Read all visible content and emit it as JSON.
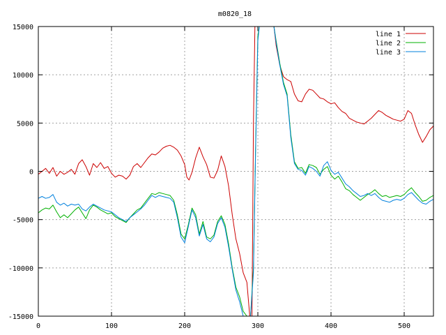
{
  "chart_data": {
    "type": "line",
    "title": "m0820_18",
    "xlabel": "",
    "ylabel": "",
    "xlim": [
      0,
      540
    ],
    "ylim": [
      -15000,
      15000
    ],
    "xticks": [
      0,
      100,
      200,
      300,
      400,
      500
    ],
    "yticks": [
      -15000,
      -10000,
      -5000,
      0,
      5000,
      10000,
      15000
    ],
    "grid": true,
    "legend_position": "top-right",
    "series": [
      {
        "name": "line 1",
        "color": "#cc0000",
        "points": [
          [
            0,
            -300
          ],
          [
            5,
            0
          ],
          [
            10,
            300
          ],
          [
            15,
            -200
          ],
          [
            20,
            400
          ],
          [
            25,
            -500
          ],
          [
            30,
            0
          ],
          [
            35,
            -300
          ],
          [
            40,
            -100
          ],
          [
            45,
            200
          ],
          [
            50,
            -300
          ],
          [
            55,
            800
          ],
          [
            60,
            1200
          ],
          [
            65,
            500
          ],
          [
            70,
            -400
          ],
          [
            75,
            800
          ],
          [
            80,
            400
          ],
          [
            85,
            900
          ],
          [
            90,
            300
          ],
          [
            95,
            500
          ],
          [
            100,
            -200
          ],
          [
            105,
            -600
          ],
          [
            110,
            -400
          ],
          [
            115,
            -500
          ],
          [
            120,
            -800
          ],
          [
            125,
            -400
          ],
          [
            130,
            500
          ],
          [
            135,
            800
          ],
          [
            140,
            400
          ],
          [
            145,
            900
          ],
          [
            150,
            1400
          ],
          [
            155,
            1800
          ],
          [
            160,
            1700
          ],
          [
            165,
            2000
          ],
          [
            170,
            2400
          ],
          [
            175,
            2600
          ],
          [
            180,
            2700
          ],
          [
            185,
            2500
          ],
          [
            190,
            2200
          ],
          [
            195,
            1600
          ],
          [
            200,
            700
          ],
          [
            203,
            -600
          ],
          [
            206,
            -900
          ],
          [
            210,
            -100
          ],
          [
            215,
            1400
          ],
          [
            220,
            2500
          ],
          [
            225,
            1500
          ],
          [
            230,
            700
          ],
          [
            235,
            -600
          ],
          [
            240,
            -700
          ],
          [
            245,
            100
          ],
          [
            250,
            1600
          ],
          [
            255,
            500
          ],
          [
            260,
            -1500
          ],
          [
            265,
            -4500
          ],
          [
            270,
            -7000
          ],
          [
            275,
            -8500
          ],
          [
            280,
            -10500
          ],
          [
            285,
            -11500
          ],
          [
            289,
            -15000
          ],
          [
            292,
            -15000
          ],
          [
            294,
            5000
          ],
          [
            296,
            15000
          ],
          [
            322,
            15000
          ],
          [
            325,
            13000
          ],
          [
            330,
            11000
          ],
          [
            335,
            9800
          ],
          [
            340,
            9500
          ],
          [
            345,
            9300
          ],
          [
            350,
            8000
          ],
          [
            355,
            7300
          ],
          [
            360,
            7200
          ],
          [
            365,
            8000
          ],
          [
            370,
            8500
          ],
          [
            375,
            8400
          ],
          [
            380,
            8000
          ],
          [
            385,
            7600
          ],
          [
            390,
            7500
          ],
          [
            395,
            7200
          ],
          [
            400,
            7000
          ],
          [
            405,
            7100
          ],
          [
            410,
            6600
          ],
          [
            415,
            6200
          ],
          [
            420,
            6000
          ],
          [
            425,
            5500
          ],
          [
            430,
            5300
          ],
          [
            435,
            5100
          ],
          [
            440,
            5000
          ],
          [
            445,
            4900
          ],
          [
            450,
            5200
          ],
          [
            455,
            5500
          ],
          [
            460,
            5900
          ],
          [
            465,
            6300
          ],
          [
            470,
            6100
          ],
          [
            475,
            5800
          ],
          [
            480,
            5600
          ],
          [
            485,
            5400
          ],
          [
            490,
            5300
          ],
          [
            495,
            5200
          ],
          [
            500,
            5400
          ],
          [
            505,
            6300
          ],
          [
            510,
            6000
          ],
          [
            515,
            4800
          ],
          [
            520,
            3800
          ],
          [
            525,
            3000
          ],
          [
            530,
            3600
          ],
          [
            535,
            4300
          ],
          [
            540,
            4700
          ]
        ]
      },
      {
        "name": "line 2",
        "color": "#00b000",
        "points": [
          [
            0,
            -4300
          ],
          [
            5,
            -4000
          ],
          [
            10,
            -3800
          ],
          [
            15,
            -3900
          ],
          [
            20,
            -3500
          ],
          [
            25,
            -4200
          ],
          [
            30,
            -4800
          ],
          [
            35,
            -4500
          ],
          [
            40,
            -4800
          ],
          [
            45,
            -4400
          ],
          [
            50,
            -4000
          ],
          [
            55,
            -3700
          ],
          [
            60,
            -4300
          ],
          [
            65,
            -4900
          ],
          [
            70,
            -4000
          ],
          [
            75,
            -3500
          ],
          [
            80,
            -3700
          ],
          [
            85,
            -4000
          ],
          [
            90,
            -4200
          ],
          [
            95,
            -4400
          ],
          [
            100,
            -4300
          ],
          [
            105,
            -4700
          ],
          [
            110,
            -4900
          ],
          [
            115,
            -5100
          ],
          [
            120,
            -5300
          ],
          [
            125,
            -4800
          ],
          [
            130,
            -4400
          ],
          [
            135,
            -4000
          ],
          [
            140,
            -3800
          ],
          [
            145,
            -3300
          ],
          [
            150,
            -2800
          ],
          [
            155,
            -2300
          ],
          [
            160,
            -2400
          ],
          [
            165,
            -2200
          ],
          [
            170,
            -2300
          ],
          [
            175,
            -2400
          ],
          [
            180,
            -2500
          ],
          [
            185,
            -3000
          ],
          [
            190,
            -4500
          ],
          [
            195,
            -6500
          ],
          [
            200,
            -7000
          ],
          [
            205,
            -5500
          ],
          [
            210,
            -3800
          ],
          [
            215,
            -4500
          ],
          [
            220,
            -6500
          ],
          [
            225,
            -5200
          ],
          [
            230,
            -6800
          ],
          [
            235,
            -7000
          ],
          [
            240,
            -6600
          ],
          [
            245,
            -5200
          ],
          [
            250,
            -4600
          ],
          [
            255,
            -5500
          ],
          [
            260,
            -7500
          ],
          [
            265,
            -10000
          ],
          [
            270,
            -12000
          ],
          [
            275,
            -13000
          ],
          [
            280,
            -14500
          ],
          [
            285,
            -15000
          ],
          [
            290,
            -15000
          ],
          [
            294,
            -10000
          ],
          [
            297,
            3000
          ],
          [
            300,
            14000
          ],
          [
            302,
            15000
          ],
          [
            322,
            15000
          ],
          [
            325,
            13500
          ],
          [
            330,
            11200
          ],
          [
            335,
            9200
          ],
          [
            340,
            8000
          ],
          [
            345,
            3800
          ],
          [
            350,
            1000
          ],
          [
            355,
            300
          ],
          [
            360,
            400
          ],
          [
            365,
            -200
          ],
          [
            370,
            700
          ],
          [
            375,
            600
          ],
          [
            380,
            400
          ],
          [
            385,
            -300
          ],
          [
            390,
            200
          ],
          [
            395,
            500
          ],
          [
            400,
            -400
          ],
          [
            405,
            -800
          ],
          [
            410,
            -500
          ],
          [
            415,
            -1100
          ],
          [
            420,
            -1800
          ],
          [
            425,
            -2000
          ],
          [
            430,
            -2400
          ],
          [
            435,
            -2700
          ],
          [
            440,
            -3000
          ],
          [
            445,
            -2700
          ],
          [
            450,
            -2400
          ],
          [
            455,
            -2200
          ],
          [
            460,
            -1900
          ],
          [
            465,
            -2300
          ],
          [
            470,
            -2600
          ],
          [
            475,
            -2500
          ],
          [
            480,
            -2700
          ],
          [
            485,
            -2600
          ],
          [
            490,
            -2500
          ],
          [
            495,
            -2600
          ],
          [
            500,
            -2400
          ],
          [
            505,
            -2000
          ],
          [
            510,
            -1700
          ],
          [
            515,
            -2200
          ],
          [
            520,
            -2600
          ],
          [
            525,
            -3100
          ],
          [
            530,
            -3000
          ],
          [
            535,
            -2700
          ],
          [
            540,
            -2500
          ]
        ]
      },
      {
        "name": "line 3",
        "color": "#0080dd",
        "points": [
          [
            0,
            -2800
          ],
          [
            5,
            -2600
          ],
          [
            10,
            -2800
          ],
          [
            15,
            -2700
          ],
          [
            20,
            -2400
          ],
          [
            25,
            -3200
          ],
          [
            30,
            -3500
          ],
          [
            35,
            -3300
          ],
          [
            40,
            -3600
          ],
          [
            45,
            -3400
          ],
          [
            50,
            -3500
          ],
          [
            55,
            -3400
          ],
          [
            60,
            -3900
          ],
          [
            65,
            -4100
          ],
          [
            70,
            -3700
          ],
          [
            75,
            -3400
          ],
          [
            80,
            -3600
          ],
          [
            85,
            -3800
          ],
          [
            90,
            -4000
          ],
          [
            95,
            -4100
          ],
          [
            100,
            -4200
          ],
          [
            105,
            -4500
          ],
          [
            110,
            -4800
          ],
          [
            115,
            -5000
          ],
          [
            120,
            -5200
          ],
          [
            125,
            -4800
          ],
          [
            130,
            -4500
          ],
          [
            135,
            -4200
          ],
          [
            140,
            -3900
          ],
          [
            145,
            -3500
          ],
          [
            150,
            -3000
          ],
          [
            155,
            -2500
          ],
          [
            160,
            -2700
          ],
          [
            165,
            -2500
          ],
          [
            170,
            -2600
          ],
          [
            175,
            -2700
          ],
          [
            180,
            -2800
          ],
          [
            185,
            -3200
          ],
          [
            190,
            -4800
          ],
          [
            195,
            -6800
          ],
          [
            200,
            -7400
          ],
          [
            205,
            -5700
          ],
          [
            210,
            -4000
          ],
          [
            215,
            -4800
          ],
          [
            220,
            -6700
          ],
          [
            225,
            -5500
          ],
          [
            230,
            -7000
          ],
          [
            235,
            -7300
          ],
          [
            240,
            -6800
          ],
          [
            245,
            -5400
          ],
          [
            250,
            -4800
          ],
          [
            255,
            -5800
          ],
          [
            260,
            -7800
          ],
          [
            265,
            -10200
          ],
          [
            270,
            -12300
          ],
          [
            275,
            -13500
          ],
          [
            280,
            -15000
          ],
          [
            285,
            -15000
          ],
          [
            290,
            -15000
          ],
          [
            294,
            -10500
          ],
          [
            297,
            2500
          ],
          [
            300,
            13500
          ],
          [
            302,
            15000
          ],
          [
            322,
            15000
          ],
          [
            325,
            13300
          ],
          [
            330,
            11000
          ],
          [
            335,
            9000
          ],
          [
            340,
            7800
          ],
          [
            345,
            3500
          ],
          [
            350,
            800
          ],
          [
            355,
            200
          ],
          [
            360,
            100
          ],
          [
            365,
            -400
          ],
          [
            370,
            500
          ],
          [
            375,
            300
          ],
          [
            380,
            0
          ],
          [
            385,
            -500
          ],
          [
            390,
            600
          ],
          [
            395,
            1000
          ],
          [
            400,
            100
          ],
          [
            405,
            -300
          ],
          [
            410,
            -100
          ],
          [
            415,
            -700
          ],
          [
            420,
            -1300
          ],
          [
            425,
            -1600
          ],
          [
            430,
            -2000
          ],
          [
            435,
            -2300
          ],
          [
            440,
            -2600
          ],
          [
            445,
            -2500
          ],
          [
            450,
            -2300
          ],
          [
            455,
            -2500
          ],
          [
            460,
            -2300
          ],
          [
            465,
            -2700
          ],
          [
            470,
            -3000
          ],
          [
            475,
            -3100
          ],
          [
            480,
            -3200
          ],
          [
            485,
            -3000
          ],
          [
            490,
            -2900
          ],
          [
            495,
            -3000
          ],
          [
            500,
            -2800
          ],
          [
            505,
            -2400
          ],
          [
            510,
            -2200
          ],
          [
            515,
            -2600
          ],
          [
            520,
            -3000
          ],
          [
            525,
            -3300
          ],
          [
            530,
            -3400
          ],
          [
            535,
            -3100
          ],
          [
            540,
            -2900
          ]
        ]
      }
    ]
  }
}
